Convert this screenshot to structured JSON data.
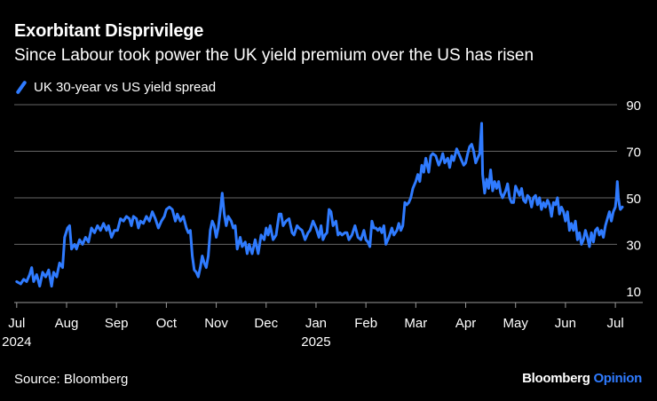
{
  "header": {
    "title": "Exorbitant Disprivilege",
    "subtitle": "Since Labour took power the UK yield premium over the US has risen"
  },
  "legend": {
    "label": "UK 30-year vs US yield spread"
  },
  "footer": {
    "source": "Source: Bloomberg",
    "brand": "Bloomberg",
    "brand_accent": "Opinion"
  },
  "colors": {
    "background": "#000000",
    "line": "#2f7bff",
    "grid": "#666666",
    "text": "#ffffff"
  },
  "chart_data": {
    "type": "line",
    "title": "Exorbitant Disprivilege",
    "subtitle": "Since Labour took power the UK yield premium over the US has risen",
    "xlabel": "",
    "ylabel": "",
    "ylim": [
      5,
      90
    ],
    "yticks": [
      10,
      30,
      50,
      70,
      90
    ],
    "y_axis_side": "right",
    "grid": true,
    "legend_position": "top-left",
    "x_unit": "months since 2024-07-01",
    "xlim": [
      -0.05,
      12.55
    ],
    "xticks": [
      {
        "label": "Jul",
        "sub": "2024",
        "x": 0
      },
      {
        "label": "Aug",
        "sub": "",
        "x": 1
      },
      {
        "label": "Sep",
        "sub": "",
        "x": 2
      },
      {
        "label": "Oct",
        "sub": "",
        "x": 3
      },
      {
        "label": "Nov",
        "sub": "",
        "x": 4
      },
      {
        "label": "Dec",
        "sub": "",
        "x": 5
      },
      {
        "label": "Jan",
        "sub": "2025",
        "x": 6
      },
      {
        "label": "Feb",
        "sub": "",
        "x": 7
      },
      {
        "label": "Mar",
        "sub": "",
        "x": 8
      },
      {
        "label": "Apr",
        "sub": "",
        "x": 9
      },
      {
        "label": "May",
        "sub": "",
        "x": 10
      },
      {
        "label": "Jun",
        "sub": "",
        "x": 11
      },
      {
        "label": "Jul",
        "sub": "",
        "x": 12
      }
    ],
    "series": [
      {
        "name": "UK 30-year vs US yield spread",
        "points": [
          [
            0.0,
            14
          ],
          [
            0.08,
            13
          ],
          [
            0.14,
            15
          ],
          [
            0.2,
            14
          ],
          [
            0.26,
            17
          ],
          [
            0.3,
            20
          ],
          [
            0.34,
            14
          ],
          [
            0.4,
            17
          ],
          [
            0.46,
            12
          ],
          [
            0.52,
            18
          ],
          [
            0.58,
            16
          ],
          [
            0.64,
            19
          ],
          [
            0.7,
            12
          ],
          [
            0.74,
            18
          ],
          [
            0.8,
            16
          ],
          [
            0.86,
            22
          ],
          [
            0.92,
            20
          ],
          [
            0.96,
            33
          ],
          [
            1.02,
            37
          ],
          [
            1.06,
            38
          ],
          [
            1.1,
            28
          ],
          [
            1.16,
            30
          ],
          [
            1.2,
            28
          ],
          [
            1.26,
            32
          ],
          [
            1.32,
            30
          ],
          [
            1.38,
            33
          ],
          [
            1.44,
            31
          ],
          [
            1.5,
            37
          ],
          [
            1.56,
            35
          ],
          [
            1.62,
            38
          ],
          [
            1.68,
            36
          ],
          [
            1.74,
            39
          ],
          [
            1.8,
            36
          ],
          [
            1.84,
            38
          ],
          [
            1.9,
            33
          ],
          [
            1.96,
            36
          ],
          [
            2.02,
            36
          ],
          [
            2.08,
            41
          ],
          [
            2.14,
            40
          ],
          [
            2.2,
            42
          ],
          [
            2.26,
            41
          ],
          [
            2.3,
            38
          ],
          [
            2.34,
            42
          ],
          [
            2.4,
            41
          ],
          [
            2.44,
            37
          ],
          [
            2.48,
            40
          ],
          [
            2.54,
            39
          ],
          [
            2.6,
            42
          ],
          [
            2.66,
            40
          ],
          [
            2.72,
            44
          ],
          [
            2.78,
            41
          ],
          [
            2.84,
            37
          ],
          [
            2.9,
            40
          ],
          [
            2.96,
            42
          ],
          [
            3.0,
            45
          ],
          [
            3.06,
            46
          ],
          [
            3.12,
            45
          ],
          [
            3.18,
            40
          ],
          [
            3.22,
            43
          ],
          [
            3.28,
            40
          ],
          [
            3.34,
            42
          ],
          [
            3.4,
            37
          ],
          [
            3.44,
            35
          ],
          [
            3.48,
            36
          ],
          [
            3.52,
            25
          ],
          [
            3.56,
            19
          ],
          [
            3.6,
            18
          ],
          [
            3.64,
            16
          ],
          [
            3.68,
            20
          ],
          [
            3.72,
            25
          ],
          [
            3.76,
            22
          ],
          [
            3.8,
            20
          ],
          [
            3.84,
            25
          ],
          [
            3.88,
            36
          ],
          [
            3.92,
            40
          ],
          [
            3.96,
            38
          ],
          [
            4.0,
            33
          ],
          [
            4.04,
            37
          ],
          [
            4.08,
            44
          ],
          [
            4.12,
            52
          ],
          [
            4.16,
            43
          ],
          [
            4.2,
            38
          ],
          [
            4.24,
            42
          ],
          [
            4.3,
            40
          ],
          [
            4.34,
            37
          ],
          [
            4.38,
            38
          ],
          [
            4.42,
            28
          ],
          [
            4.48,
            33
          ],
          [
            4.52,
            29
          ],
          [
            4.58,
            31
          ],
          [
            4.62,
            26
          ],
          [
            4.66,
            30
          ],
          [
            4.72,
            26
          ],
          [
            4.78,
            32
          ],
          [
            4.84,
            26
          ],
          [
            4.9,
            34
          ],
          [
            4.96,
            32
          ],
          [
            5.0,
            37
          ],
          [
            5.04,
            34
          ],
          [
            5.08,
            38
          ],
          [
            5.14,
            32
          ],
          [
            5.2,
            34
          ],
          [
            5.26,
            43
          ],
          [
            5.3,
            43
          ],
          [
            5.34,
            38
          ],
          [
            5.4,
            40
          ],
          [
            5.46,
            41
          ],
          [
            5.52,
            35
          ],
          [
            5.56,
            34
          ],
          [
            5.62,
            38
          ],
          [
            5.66,
            37
          ],
          [
            5.72,
            36
          ],
          [
            5.78,
            32
          ],
          [
            5.84,
            35
          ],
          [
            5.88,
            36
          ],
          [
            5.94,
            40
          ],
          [
            6.0,
            37
          ],
          [
            6.06,
            33
          ],
          [
            6.1,
            38
          ],
          [
            6.14,
            32
          ],
          [
            6.18,
            34
          ],
          [
            6.22,
            35
          ],
          [
            6.26,
            45
          ],
          [
            6.3,
            44
          ],
          [
            6.34,
            38
          ],
          [
            6.4,
            40
          ],
          [
            6.44,
            34
          ],
          [
            6.48,
            35
          ],
          [
            6.52,
            34
          ],
          [
            6.58,
            35
          ],
          [
            6.62,
            35
          ],
          [
            6.66,
            32
          ],
          [
            6.72,
            34
          ],
          [
            6.78,
            38
          ],
          [
            6.84,
            33
          ],
          [
            6.9,
            32
          ],
          [
            6.96,
            36
          ],
          [
            7.0,
            32
          ],
          [
            7.04,
            31
          ],
          [
            7.08,
            29
          ],
          [
            7.12,
            40
          ],
          [
            7.16,
            37
          ],
          [
            7.2,
            37
          ],
          [
            7.24,
            36
          ],
          [
            7.28,
            37
          ],
          [
            7.32,
            35
          ],
          [
            7.36,
            38
          ],
          [
            7.4,
            30
          ],
          [
            7.46,
            33
          ],
          [
            7.52,
            37
          ],
          [
            7.56,
            34
          ],
          [
            7.62,
            36
          ],
          [
            7.66,
            39
          ],
          [
            7.7,
            36
          ],
          [
            7.74,
            38
          ],
          [
            7.78,
            48
          ],
          [
            7.82,
            47
          ],
          [
            7.86,
            48
          ],
          [
            7.9,
            50
          ],
          [
            7.94,
            54
          ],
          [
            8.0,
            57
          ],
          [
            8.04,
            60
          ],
          [
            8.08,
            57
          ],
          [
            8.12,
            64
          ],
          [
            8.16,
            61
          ],
          [
            8.2,
            67
          ],
          [
            8.26,
            61
          ],
          [
            8.3,
            68
          ],
          [
            8.34,
            69
          ],
          [
            8.4,
            68
          ],
          [
            8.46,
            64
          ],
          [
            8.5,
            66
          ],
          [
            8.54,
            69
          ],
          [
            8.58,
            65
          ],
          [
            8.64,
            67
          ],
          [
            8.68,
            63
          ],
          [
            8.72,
            68
          ],
          [
            8.76,
            66
          ],
          [
            8.82,
            71
          ],
          [
            8.88,
            68
          ],
          [
            8.92,
            66
          ],
          [
            8.96,
            64
          ],
          [
            9.0,
            65
          ],
          [
            9.04,
            69
          ],
          [
            9.08,
            72
          ],
          [
            9.12,
            73
          ],
          [
            9.16,
            70
          ],
          [
            9.2,
            65
          ],
          [
            9.24,
            67
          ],
          [
            9.28,
            69
          ],
          [
            9.32,
            82
          ],
          [
            9.34,
            60
          ],
          [
            9.38,
            52
          ],
          [
            9.42,
            58
          ],
          [
            9.46,
            54
          ],
          [
            9.5,
            62
          ],
          [
            9.54,
            53
          ],
          [
            9.58,
            57
          ],
          [
            9.62,
            54
          ],
          [
            9.66,
            57
          ],
          [
            9.7,
            52
          ],
          [
            9.74,
            50
          ],
          [
            9.8,
            53
          ],
          [
            9.84,
            56
          ],
          [
            9.88,
            50
          ],
          [
            9.92,
            48
          ],
          [
            9.96,
            48
          ],
          [
            10.0,
            55
          ],
          [
            10.04,
            53
          ],
          [
            10.08,
            51
          ],
          [
            10.12,
            54
          ],
          [
            10.16,
            49
          ],
          [
            10.2,
            48
          ],
          [
            10.24,
            51
          ],
          [
            10.28,
            50
          ],
          [
            10.32,
            46
          ],
          [
            10.36,
            50
          ],
          [
            10.4,
            51
          ],
          [
            10.44,
            47
          ],
          [
            10.48,
            50
          ],
          [
            10.52,
            45
          ],
          [
            10.56,
            48
          ],
          [
            10.6,
            46
          ],
          [
            10.64,
            49
          ],
          [
            10.68,
            47
          ],
          [
            10.72,
            42
          ],
          [
            10.76,
            48
          ],
          [
            10.8,
            47
          ],
          [
            10.84,
            50
          ],
          [
            10.88,
            43
          ],
          [
            10.92,
            46
          ],
          [
            10.96,
            44
          ],
          [
            11.0,
            40
          ],
          [
            11.04,
            44
          ],
          [
            11.08,
            36
          ],
          [
            11.12,
            39
          ],
          [
            11.16,
            36
          ],
          [
            11.2,
            40
          ],
          [
            11.24,
            32
          ],
          [
            11.28,
            35
          ],
          [
            11.32,
            30
          ],
          [
            11.36,
            32
          ],
          [
            11.4,
            36
          ],
          [
            11.44,
            33
          ],
          [
            11.48,
            29
          ],
          [
            11.52,
            35
          ],
          [
            11.56,
            31
          ],
          [
            11.6,
            36
          ],
          [
            11.64,
            37
          ],
          [
            11.68,
            34
          ],
          [
            11.72,
            36
          ],
          [
            11.76,
            33
          ],
          [
            11.8,
            38
          ],
          [
            11.84,
            41
          ],
          [
            11.88,
            44
          ],
          [
            11.92,
            40
          ],
          [
            11.96,
            44
          ],
          [
            12.0,
            46
          ],
          [
            12.02,
            50
          ],
          [
            12.04,
            57
          ],
          [
            12.06,
            50
          ],
          [
            12.08,
            47
          ],
          [
            12.1,
            45
          ],
          [
            12.14,
            46
          ]
        ]
      }
    ]
  }
}
